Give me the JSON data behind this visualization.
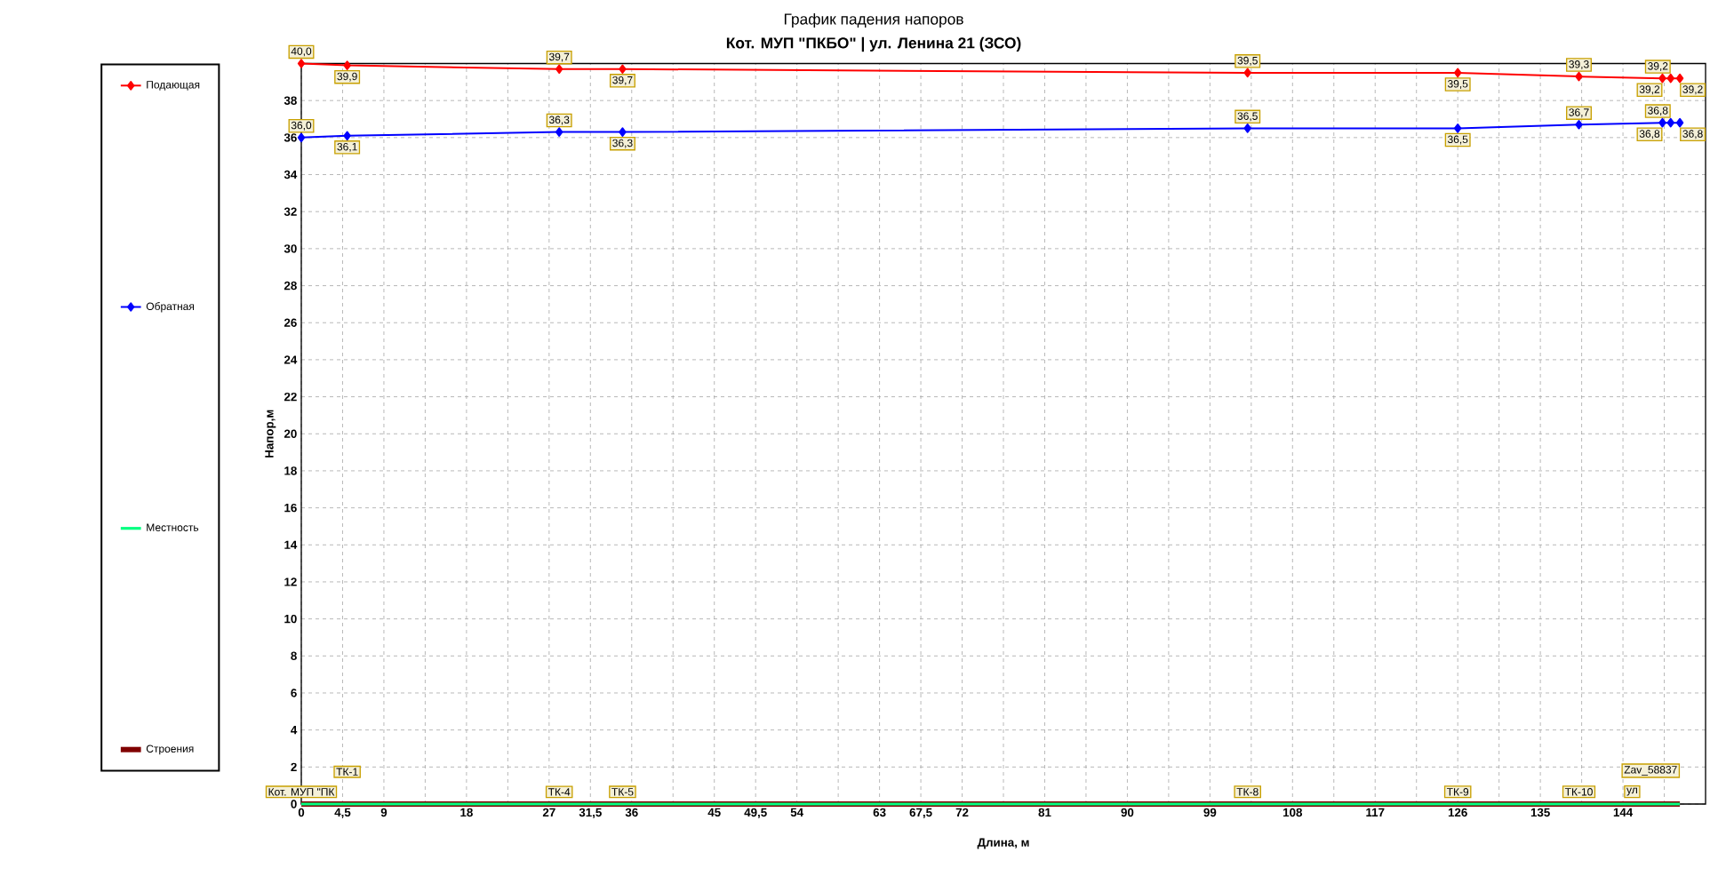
{
  "chart_data": {
    "type": "line",
    "title": "График падения напоров",
    "subtitle": "Кот. МУП \"ПКБО\" | ул. Ленина 21 (ЗСО)",
    "xlabel": "Длина, м",
    "ylabel": "Напор,м",
    "xlim": [
      0,
      153
    ],
    "ylim": [
      0,
      40
    ],
    "xticks": [
      0,
      {
        "value": 4.5,
        "label": "4,5"
      },
      9,
      {
        "value": 13.5,
        "label": null
      },
      18,
      {
        "value": 22.5,
        "label": null
      },
      27,
      {
        "value": 31.5,
        "label": "31,5"
      },
      36,
      {
        "value": 40.5,
        "label": null
      },
      45,
      {
        "value": 49.5,
        "label": "49,5"
      },
      54,
      {
        "value": 58.5,
        "label": null
      },
      63,
      {
        "value": 67.5,
        "label": "67,5"
      },
      72,
      {
        "value": 76.5,
        "label": null
      },
      81,
      {
        "value": 85.5,
        "label": null
      },
      90,
      {
        "value": 94.5,
        "label": null
      },
      99,
      {
        "value": 103.5,
        "label": null
      },
      108,
      {
        "value": 112.5,
        "label": null
      },
      117,
      {
        "value": 121.5,
        "label": null
      },
      126,
      {
        "value": 130.5,
        "label": null
      },
      135,
      {
        "value": 139.5,
        "label": null
      },
      144,
      {
        "value": 148.5,
        "label": null
      }
    ],
    "yticks": [
      0,
      2,
      4,
      6,
      8,
      10,
      12,
      14,
      16,
      18,
      20,
      22,
      24,
      26,
      28,
      30,
      32,
      34,
      36,
      38
    ],
    "grid": true,
    "legend": "left",
    "line_style": "solid",
    "series": [
      {
        "name": "Подающая",
        "color": "#ff0000",
        "marker": "diamond",
        "x": [
          0,
          5,
          28.1,
          35,
          103.1,
          126,
          139.2,
          148.3,
          149.2,
          150.2
        ],
        "values": [
          40.0,
          39.9,
          39.7,
          39.7,
          39.5,
          39.5,
          39.3,
          39.2,
          39.2,
          39.2
        ],
        "value_labels": [
          "40,0",
          "39,9",
          "39,7",
          "39,7",
          "39,5",
          "39,5",
          "39,3",
          "39,2",
          "39,2",
          "39,2"
        ]
      },
      {
        "name": "Обратная",
        "color": "#0000ff",
        "marker": "diamond",
        "x": [
          0,
          5,
          28.1,
          35,
          103.1,
          126,
          139.2,
          148.3,
          149.2,
          150.2
        ],
        "values": [
          36.0,
          36.1,
          36.3,
          36.3,
          36.5,
          36.5,
          36.7,
          36.8,
          36.8,
          36.8
        ],
        "value_labels": [
          "36,0",
          "36,1",
          "36,3",
          "36,3",
          "36,5",
          "36,5",
          "36,7",
          "36,8",
          "36,8",
          "36,8"
        ]
      },
      {
        "name": "Местность",
        "color": "#00ff80",
        "marker": "none",
        "x": [
          0,
          150.2
        ],
        "values": [
          0,
          0
        ]
      },
      {
        "name": "Строения",
        "color": "#800000",
        "marker": "none",
        "x": [
          0,
          150.2
        ],
        "values": [
          0,
          0
        ]
      }
    ],
    "annotations": [
      {
        "text": "Кот. МУП \"ПК",
        "x": 0,
        "y": 0
      },
      {
        "text": "ТК-1",
        "x": 5,
        "y": 0
      },
      {
        "text": "ТК-4",
        "x": 28.1,
        "y": 0
      },
      {
        "text": "ТК-5",
        "x": 35,
        "y": 0
      },
      {
        "text": "ТК-8",
        "x": 103.1,
        "y": 0
      },
      {
        "text": "ТК-9",
        "x": 126,
        "y": 0
      },
      {
        "text": "ТК-10",
        "x": 139.2,
        "y": 0
      },
      {
        "text": "ул",
        "x": 145,
        "y": 0
      },
      {
        "text": "Zav_58837",
        "x": 150.2,
        "y": 0
      }
    ]
  }
}
